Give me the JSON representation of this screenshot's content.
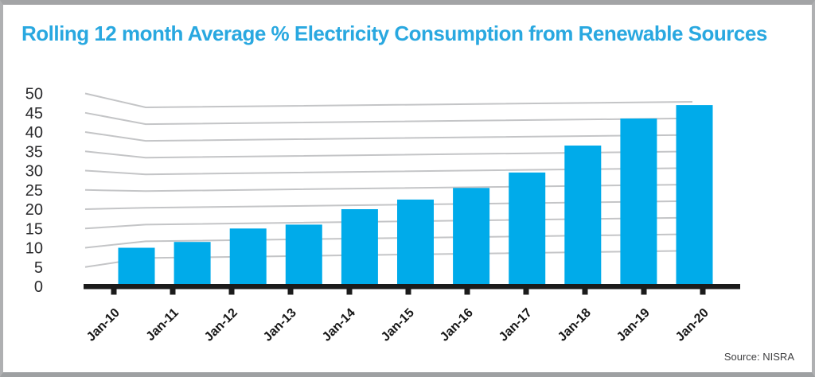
{
  "header": {
    "title": "Rolling 12 month Average % Electricity Consumption from Renewable Sources"
  },
  "footer": {
    "source": "Source: NISRA"
  },
  "colors": {
    "title": "#29A8E0",
    "bar": "#00ABEA",
    "gridline": "#C4C5C7",
    "axis": "#1B1B1B",
    "y_label": "#2A2A2C",
    "x_label": "#161616",
    "source_text": "#3F3F41",
    "frame_border": "#AFB0B2",
    "background": "#FFFFFF"
  },
  "chart_data": {
    "type": "bar",
    "title": "Rolling 12 month Average % Electricity Consumption from Renewable Sources",
    "categories": [
      "Jan-10",
      "Jan-11",
      "Jan-12",
      "Jan-13",
      "Jan-14",
      "Jan-15",
      "Jan-16",
      "Jan-17",
      "Jan-18",
      "Jan-19",
      "Jan-20"
    ],
    "values": [
      10,
      11.5,
      15,
      16,
      20,
      22.5,
      25.5,
      29.5,
      36.5,
      43.5,
      47
    ],
    "xlabel": "",
    "ylabel": "",
    "ylim": [
      0,
      50
    ],
    "yticks": [
      0,
      5,
      10,
      15,
      20,
      25,
      30,
      35,
      40,
      45,
      50
    ],
    "grid": "horizontal stylized (lines fan from axis labels, bend, then run nearly flat)",
    "legend": false,
    "x_tick_label_rotation": -45,
    "source": "Source: NISRA"
  }
}
